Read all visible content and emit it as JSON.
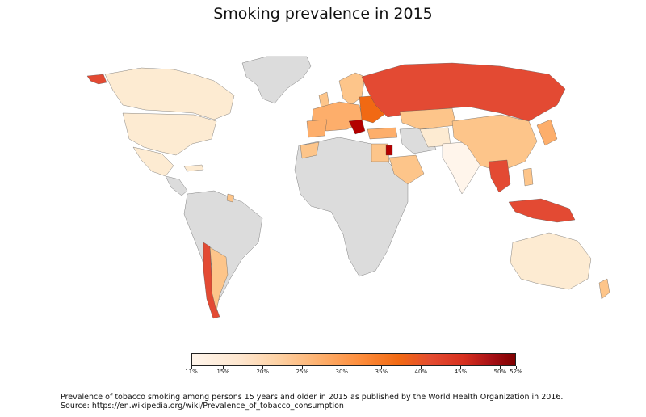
{
  "title": "Smoking prevalence in 2015",
  "colorbar": {
    "ticks": [
      "11%",
      "15%",
      "20%",
      "25%",
      "30%",
      "35%",
      "40%",
      "45%",
      "50%",
      "52%"
    ],
    "tick_values": [
      11,
      15,
      20,
      25,
      30,
      35,
      40,
      45,
      50,
      52
    ],
    "min": 11,
    "max": 52,
    "colormap": "OrRd-like (white to dark red)"
  },
  "caption": {
    "line1": "Prevalence of tobacco smoking among persons 15 years and older in 2015 as published by the World Health Organization in 2016.",
    "line2": "Source: https://en.wikipedia.org/wiki/Prevalence_of_tobacco_consumption"
  },
  "colors": {
    "no_data": "#dcdcdc",
    "low": "#fdebd2",
    "mid": "#fdc58a",
    "high": "#e34a33",
    "very_high": "#b30000"
  }
}
